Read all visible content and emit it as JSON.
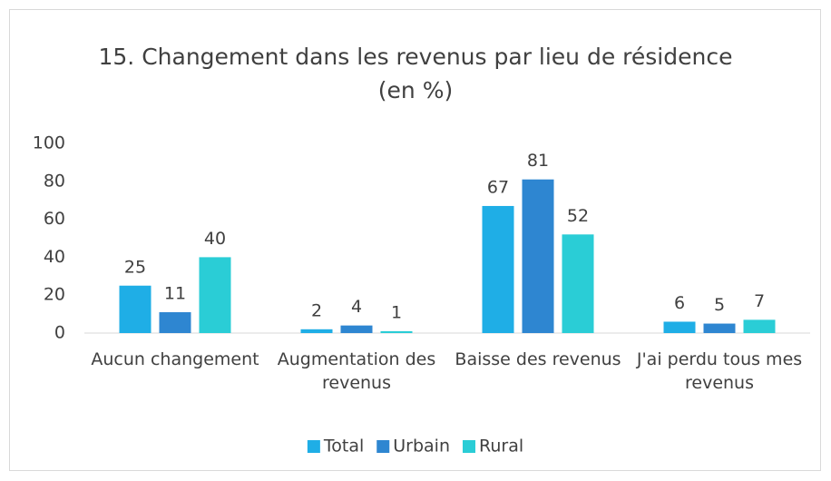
{
  "chart_data": {
    "type": "bar",
    "title": [
      "15. Changement dans les revenus par lieu de résidence",
      "(en %)"
    ],
    "categories": [
      "Aucun changement",
      "Augmentation des revenus",
      "Baisse des revenus",
      "J'ai perdu tous mes revenus"
    ],
    "series": [
      {
        "name": "Total",
        "color": "#1faee6",
        "values": [
          25,
          2,
          67,
          6
        ]
      },
      {
        "name": "Urbain",
        "color": "#2e86d1",
        "values": [
          11,
          4,
          81,
          5
        ]
      },
      {
        "name": "Rural",
        "color": "#2acdd6",
        "values": [
          40,
          1,
          52,
          7
        ]
      }
    ],
    "ylim": [
      0,
      100
    ],
    "yticks": [
      0,
      20,
      40,
      60,
      80,
      100
    ],
    "grid": false,
    "legend": "bottom"
  }
}
